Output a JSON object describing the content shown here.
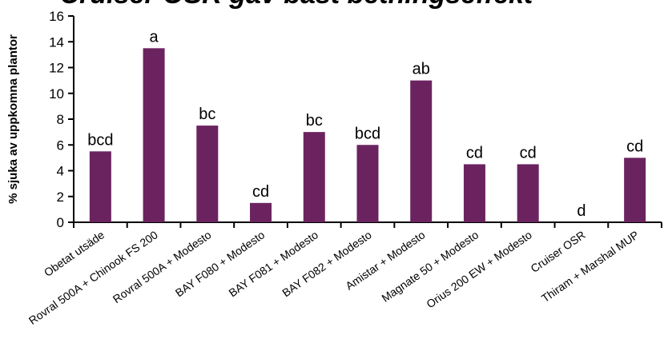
{
  "chart_data": {
    "type": "bar",
    "title": "Cruiser OSR gav bäst betningseffekt",
    "xlabel": "",
    "ylabel": "% sjuka av uppkomna plantor",
    "ylim": [
      0,
      16
    ],
    "yticks": [
      0,
      2,
      4,
      6,
      8,
      10,
      12,
      14,
      16
    ],
    "grid": false,
    "legend": "none",
    "bar_color": "#6b2360",
    "categories": [
      "Obetat utsäde",
      "Rovral 500A + Chinook FS 200",
      "Rovral 500A + Modesto",
      "BAY F080 + Modesto",
      "BAY F081 + Modesto",
      "BAY F082 + Modesto",
      "Amistar + Modesto",
      "Magnate 50 + Modesto",
      "Orius 200 EW + Modesto",
      "Cruiser OSR",
      "Thiram + Marshal MUP"
    ],
    "values": [
      5.5,
      13.5,
      7.5,
      1.5,
      7.0,
      6.0,
      11.0,
      4.5,
      4.5,
      0.0,
      5.0
    ],
    "data_labels": [
      "bcd",
      "a",
      "bc",
      "cd",
      "bc",
      "bcd",
      "ab",
      "cd",
      "cd",
      "d",
      "cd"
    ]
  }
}
